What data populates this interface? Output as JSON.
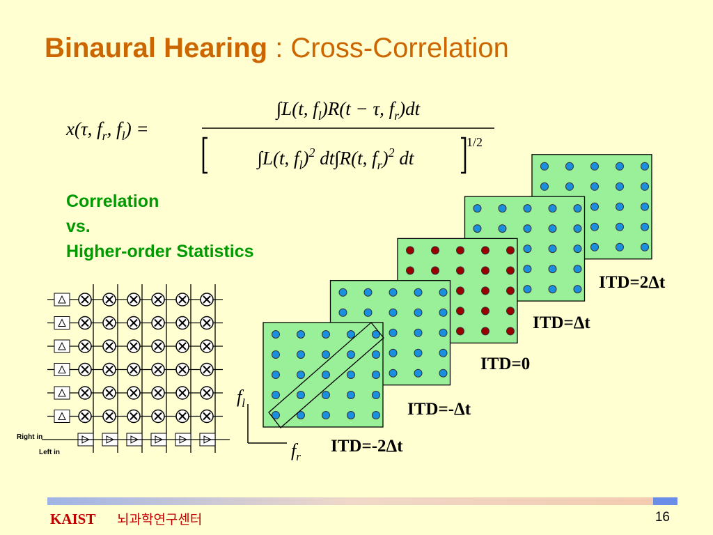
{
  "title": {
    "bold": "Binaural Hearing",
    "rest": " : Cross-Correlation"
  },
  "formula": {
    "lhs": [
      "x(τ, f",
      "r",
      ", f",
      "l",
      ") ="
    ],
    "numerator": [
      "∫L(t, f",
      "l",
      ")R(t − τ, f",
      "r",
      ")dt"
    ],
    "denominator": [
      "∫L(t, f",
      "l",
      ")",
      "2",
      " dt∫R(t, f",
      "r",
      ")",
      "2",
      " dt"
    ],
    "exponent": "1/2"
  },
  "subtitle": [
    "Correlation",
    "vs.",
    "Higher-order Statistics"
  ],
  "circuit": {
    "right_label": "Right in",
    "left_label": "Left in"
  },
  "planes": [
    {
      "label": "ITD=-2Δt",
      "dot_color": "#1a8fe0"
    },
    {
      "label": "ITD=-Δt",
      "dot_color": "#1a8fe0"
    },
    {
      "label": "ITD=0",
      "dot_color": "#990000"
    },
    {
      "label": "ITD=Δt",
      "dot_color": "#1a8fe0"
    },
    {
      "label": "ITD=2Δt",
      "dot_color": "#1a8fe0"
    }
  ],
  "axes": {
    "y": [
      "f",
      "l"
    ],
    "x": [
      "f",
      "r"
    ]
  },
  "footer": {
    "org": "KAIST",
    "center": "뇌과학연구센터",
    "page": "16"
  }
}
